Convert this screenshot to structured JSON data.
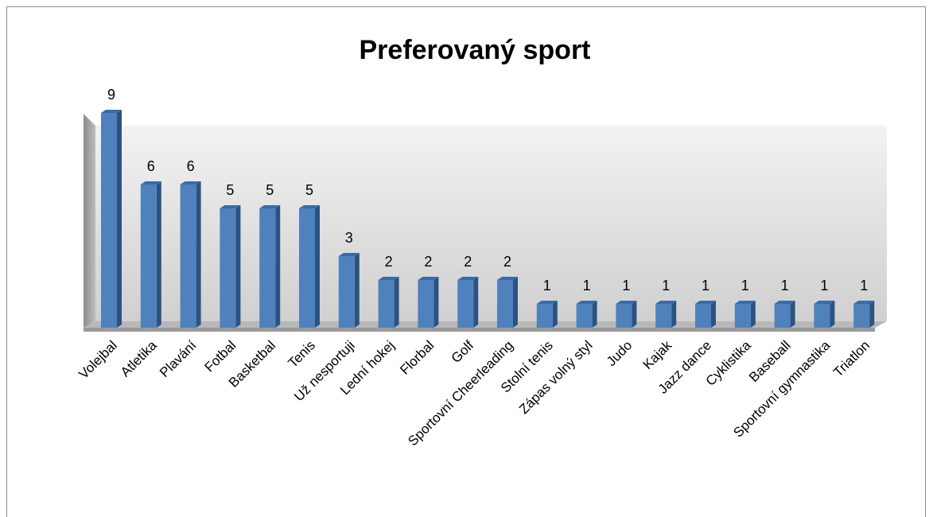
{
  "chart_data": {
    "type": "bar",
    "title": "Preferovaný sport",
    "categories": [
      "Volejbal",
      "Atletika",
      "Plavání",
      "Fotbal",
      "Basketbal",
      "Tenis",
      "Už nesportuji",
      "Lední hokej",
      "Florbal",
      "Golf",
      "Sportovní Cheerleading",
      "Stolní tenis",
      "Zápas volný styl",
      "Judo",
      "Kajak",
      "Jazz dance",
      "Cyklistika",
      "Baseball",
      "Sportovní gymnastika",
      "Triatlon"
    ],
    "values": [
      9,
      6,
      6,
      5,
      5,
      5,
      3,
      2,
      2,
      2,
      2,
      1,
      1,
      1,
      1,
      1,
      1,
      1,
      1,
      1
    ],
    "color": "#4f81bd"
  }
}
